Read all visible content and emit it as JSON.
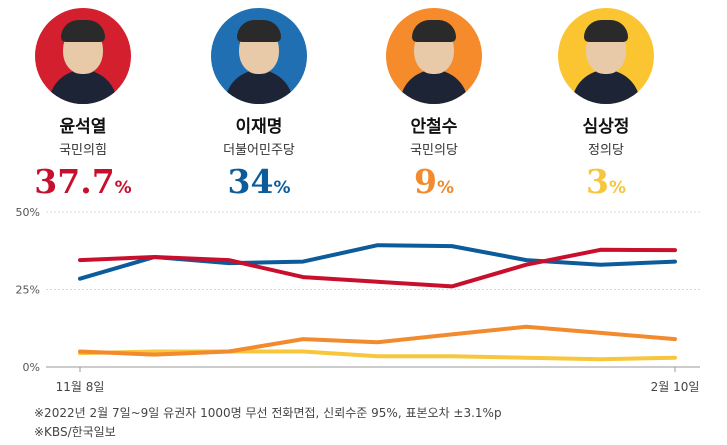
{
  "candidates": [
    {
      "name": "윤석열",
      "party": "국민의힘",
      "pct": "37.7",
      "unit": "%",
      "color": "#c8102e",
      "portrait_bg": "#d31f2e"
    },
    {
      "name": "이재명",
      "party": "더불어민주당",
      "pct": "34",
      "unit": "%",
      "color": "#0c5b9a",
      "portrait_bg": "#1f6fb2"
    },
    {
      "name": "안철수",
      "party": "국민의당",
      "pct": "9",
      "unit": "%",
      "color": "#f28a2e",
      "portrait_bg": "#f58b2a"
    },
    {
      "name": "심상정",
      "party": "정의당",
      "pct": "3",
      "unit": "%",
      "color": "#f7c63c",
      "portrait_bg": "#fbc532"
    }
  ],
  "chart_data": {
    "type": "line",
    "ylim": [
      0,
      50
    ],
    "yticks": [
      "0%",
      "25%",
      "50%"
    ],
    "xtick_labels": [
      "11월 8일",
      "2월 10일"
    ],
    "grid": true,
    "series": [
      {
        "name": "윤석열",
        "color": "#c8102e",
        "values": [
          34.5,
          35.5,
          34.5,
          29,
          27.5,
          26,
          33,
          37.8,
          37.7
        ]
      },
      {
        "name": "이재명",
        "color": "#0c5b9a",
        "values": [
          28.5,
          35.5,
          33.5,
          34,
          39.3,
          39,
          34.5,
          33,
          34
        ]
      },
      {
        "name": "안철수",
        "color": "#f28a2e",
        "values": [
          5,
          4,
          5,
          9,
          8,
          10.5,
          13,
          11,
          9
        ]
      },
      {
        "name": "심상정",
        "color": "#f7c63c",
        "values": [
          4.5,
          5,
          5,
          5,
          3.5,
          3.5,
          3,
          2.5,
          3
        ]
      }
    ]
  },
  "footnotes": {
    "survey": "※2022년 2월 7일~9일 유권자 1000명 무선 전화면접, 신뢰수준 95%, 표본오차 ±3.1%p",
    "source": "※KBS/한국일보"
  }
}
